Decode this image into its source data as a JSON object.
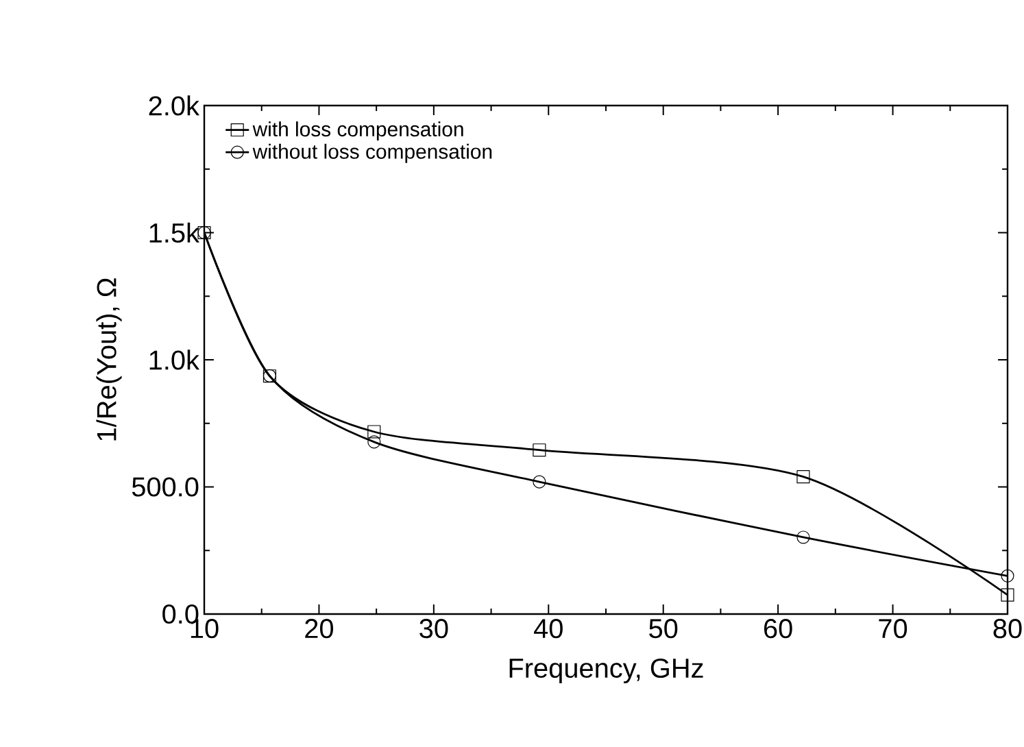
{
  "chart_data": {
    "type": "line",
    "xlabel": "Frequency, GHz",
    "ylabel": "1/Re(Yout), Ω",
    "x": [
      10,
      15.7,
      24.8,
      39.2,
      62.2,
      80
    ],
    "series": [
      {
        "name": "with loss compensation",
        "color": "#000000",
        "marker": "square",
        "values": [
          1500,
          936,
          717,
          645,
          540,
          75
        ]
      },
      {
        "name": "without loss compensation",
        "color": "#000000",
        "marker": "circle",
        "values": [
          1500,
          937,
          677,
          520,
          302,
          150
        ]
      }
    ],
    "xlim": [
      10,
      80
    ],
    "xticks": [
      10,
      20,
      30,
      40,
      50,
      60,
      70,
      80
    ],
    "ylim": [
      0,
      2000
    ],
    "yticks": [
      {
        "value": 0,
        "label": "0.0"
      },
      {
        "value": 500,
        "label": "500.0"
      },
      {
        "value": 1000,
        "label": "1.0k"
      },
      {
        "value": 1500,
        "label": "1.5k"
      },
      {
        "value": 2000,
        "label": "2.0k"
      }
    ],
    "legend": "top left",
    "grid": false,
    "line_style": "solid"
  }
}
